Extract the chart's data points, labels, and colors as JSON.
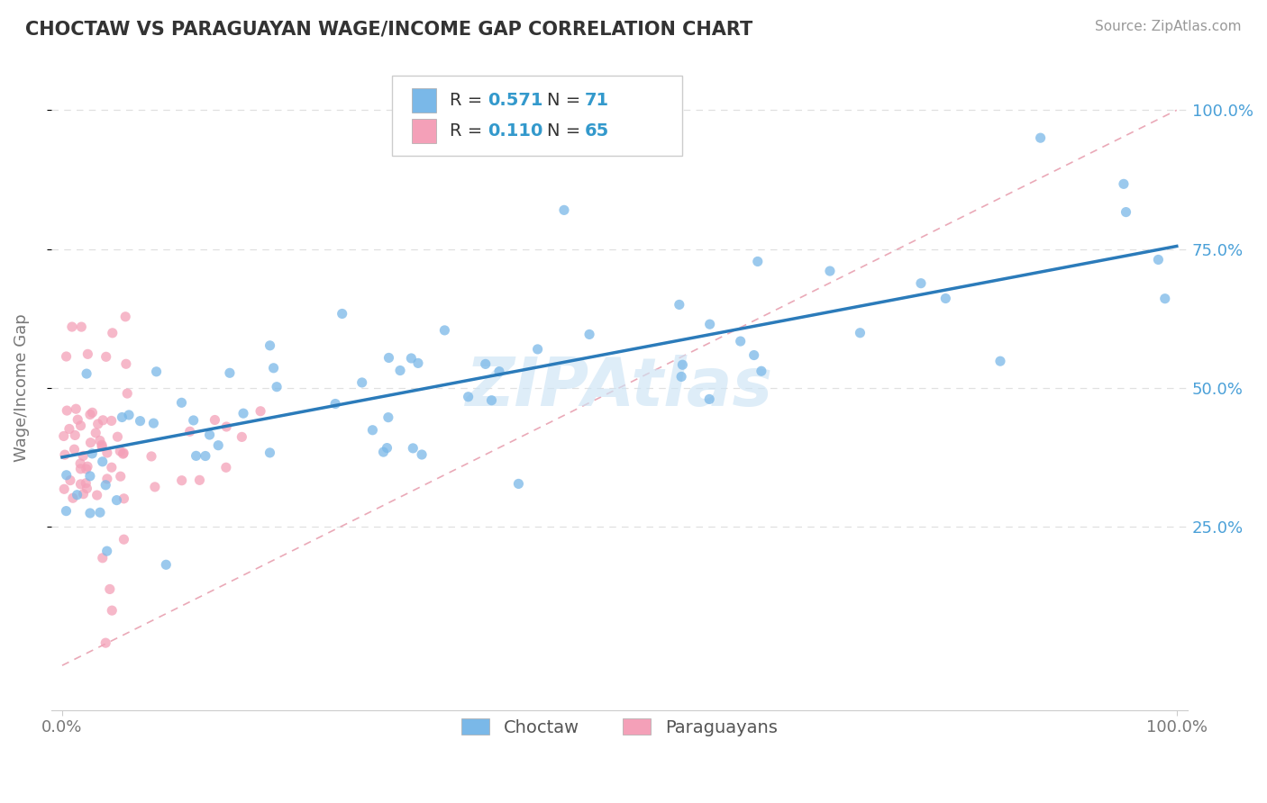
{
  "title": "CHOCTAW VS PARAGUAYAN WAGE/INCOME GAP CORRELATION CHART",
  "source": "Source: ZipAtlas.com",
  "ylabel": "Wage/Income Gap",
  "choctaw_R": 0.571,
  "choctaw_N": 71,
  "paraguayan_R": 0.11,
  "paraguayan_N": 65,
  "choctaw_color": "#7ab8e8",
  "paraguayan_color": "#f4a0b8",
  "choctaw_line_color": "#2b7bba",
  "diagonal_line_color": "#e8a0b0",
  "right_tick_color": "#4aa0d8",
  "background_color": "#ffffff",
  "grid_color": "#e0e0e0",
  "watermark_color": "#cde4f5",
  "title_color": "#333333",
  "source_color": "#999999",
  "tick_color": "#777777",
  "ylabel_color": "#777777",
  "choctaw_line_y0": 0.375,
  "choctaw_line_y1": 0.755,
  "xlim_min": -0.01,
  "xlim_max": 1.01,
  "ylim_min": -0.08,
  "ylim_max": 1.08,
  "yticks": [
    0.25,
    0.5,
    0.75,
    1.0
  ],
  "ytick_labels": [
    "25.0%",
    "50.0%",
    "75.0%",
    "100.0%"
  ],
  "xtick_labels": [
    "0.0%",
    "100.0%"
  ]
}
